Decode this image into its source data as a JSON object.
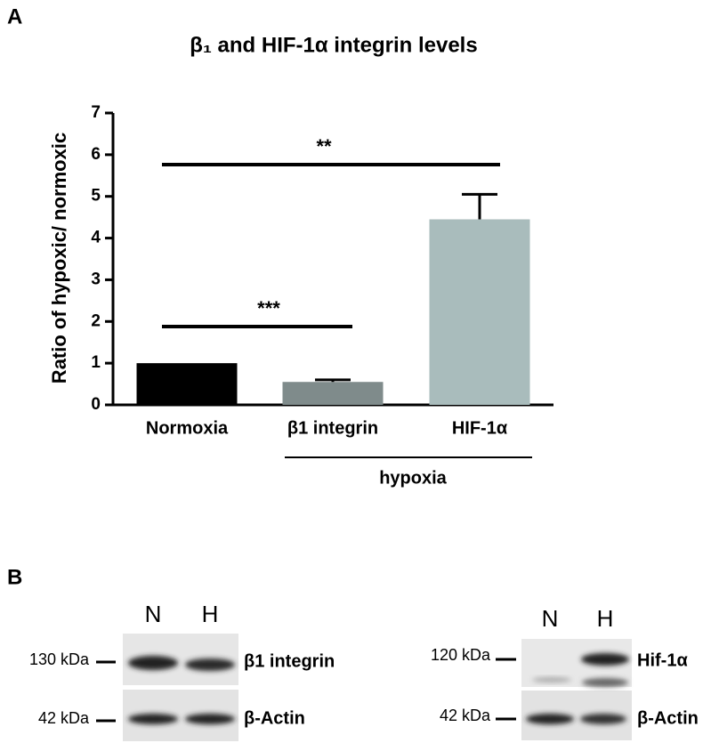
{
  "chart_data": {
    "type": "bar",
    "title": "β₁ and HIF-1α integrin levels",
    "y_label": "Ratio of hypoxic/ normoxic",
    "categories": [
      "Normoxia",
      "β1 integrin",
      "HIF-1α"
    ],
    "values": [
      1.0,
      0.55,
      4.45
    ],
    "errors": [
      null,
      0.05,
      0.6
    ],
    "colors": [
      "#000000",
      "#7f8b8b",
      "#a9bcbc"
    ],
    "ylim": [
      0,
      7
    ],
    "yticks": [
      0,
      1,
      2,
      3,
      4,
      5,
      6,
      7
    ],
    "annotations": [
      "**",
      "***"
    ],
    "group_label": "hypoxia"
  },
  "figure": {
    "panel_a": "A",
    "panel_b": "B",
    "blots": [
      {
        "lanes": [
          "N",
          "H"
        ],
        "markers": [
          "130 kDa",
          "42 kDa"
        ],
        "labels": [
          "β1 integrin",
          "β-Actin"
        ]
      },
      {
        "lanes": [
          "N",
          "H"
        ],
        "markers": [
          "120 kDa",
          "42 kDa"
        ],
        "labels": [
          "Hif-1α",
          "β-Actin"
        ]
      }
    ]
  }
}
